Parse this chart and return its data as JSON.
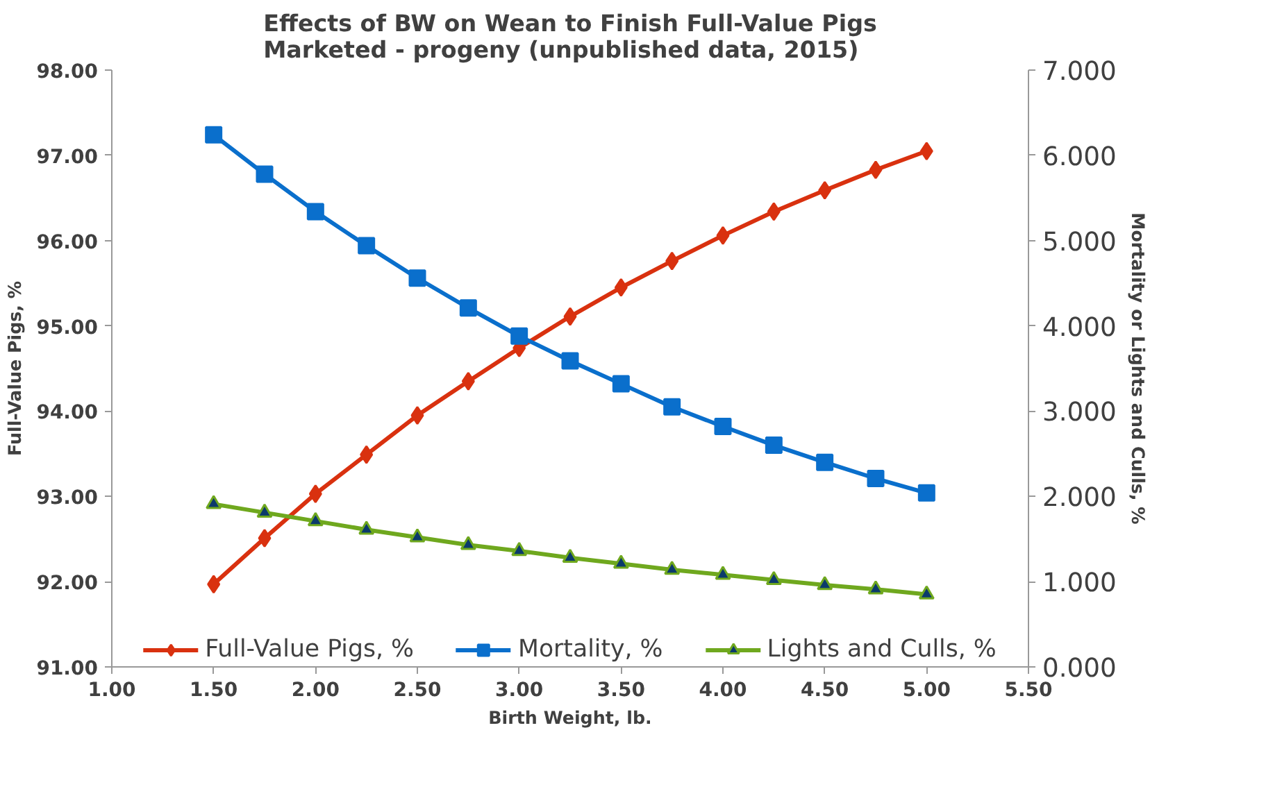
{
  "chart_data": {
    "type": "line",
    "title": "Effects of BW on Wean to Finish Full-Value Pigs Marketed - progeny (unpublished data, 2015)",
    "xlabel": "Birth Weight, lb.",
    "ylabel": "Full-Value Pigs, %",
    "y2label": "Mortality or Lights and Culls, %",
    "x": [
      1.5,
      1.75,
      2.0,
      2.25,
      2.5,
      2.75,
      3.0,
      3.25,
      3.5,
      3.75,
      4.0,
      4.25,
      4.5,
      4.75,
      5.0
    ],
    "series": [
      {
        "name": "Full-Value Pigs, %",
        "color": "#d9310f",
        "marker": "diamond",
        "values": [
          91.97,
          92.51,
          93.03,
          93.49,
          93.95,
          94.35,
          94.74,
          95.11,
          95.45,
          95.76,
          96.06,
          96.34,
          96.59,
          96.83,
          97.05
        ]
      },
      {
        "name": "Mortality, %",
        "color": "#0a6fcc",
        "marker": "square",
        "axis": "y2",
        "values": [
          6.24,
          5.78,
          5.34,
          4.94,
          4.56,
          4.21,
          3.88,
          3.59,
          3.32,
          3.05,
          2.82,
          2.6,
          2.4,
          2.21,
          2.04
        ]
      },
      {
        "name": "Lights and Culls, %",
        "color": "#6fa81e",
        "marker": "triangle",
        "axis": "y2",
        "values": [
          1.91,
          1.81,
          1.71,
          1.61,
          1.52,
          1.43,
          1.36,
          1.28,
          1.21,
          1.14,
          1.08,
          1.02,
          0.96,
          0.91,
          0.85
        ]
      }
    ],
    "xlim": [
      1.0,
      5.5
    ],
    "xticks": [
      {
        "value": 1.0,
        "label": "1.00"
      },
      {
        "value": 1.5,
        "label": "1.50"
      },
      {
        "value": 2.0,
        "label": "2.00"
      },
      {
        "value": 2.5,
        "label": "2.50"
      },
      {
        "value": 3.0,
        "label": "3.00"
      },
      {
        "value": 3.5,
        "label": "3.50"
      },
      {
        "value": 4.0,
        "label": "4.00"
      },
      {
        "value": 4.5,
        "label": "4.50"
      },
      {
        "value": 5.0,
        "label": "5.00"
      },
      {
        "value": 5.5,
        "label": "5.50"
      }
    ],
    "ylim": [
      91,
      98
    ],
    "yticks": [
      {
        "value": 91,
        "label": "91.00"
      },
      {
        "value": 92,
        "label": "92.00"
      },
      {
        "value": 93,
        "label": "93.00"
      },
      {
        "value": 94,
        "label": "94.00"
      },
      {
        "value": 95,
        "label": "95.00"
      },
      {
        "value": 96,
        "label": "96.00"
      },
      {
        "value": 97,
        "label": "97.00"
      },
      {
        "value": 98,
        "label": "98.00"
      }
    ],
    "y2lim": [
      0,
      7
    ],
    "y2ticks": [
      {
        "value": 0,
        "label": "0.000"
      },
      {
        "value": 1,
        "label": "1.000"
      },
      {
        "value": 2,
        "label": "2.000"
      },
      {
        "value": 3,
        "label": "3.000"
      },
      {
        "value": 4,
        "label": "4.000"
      },
      {
        "value": 5,
        "label": "5.000"
      },
      {
        "value": 6,
        "label": "6.000"
      },
      {
        "value": 7,
        "label": "7.000"
      }
    ],
    "grid": false,
    "legend": "bottom",
    "line_style": "solid"
  }
}
